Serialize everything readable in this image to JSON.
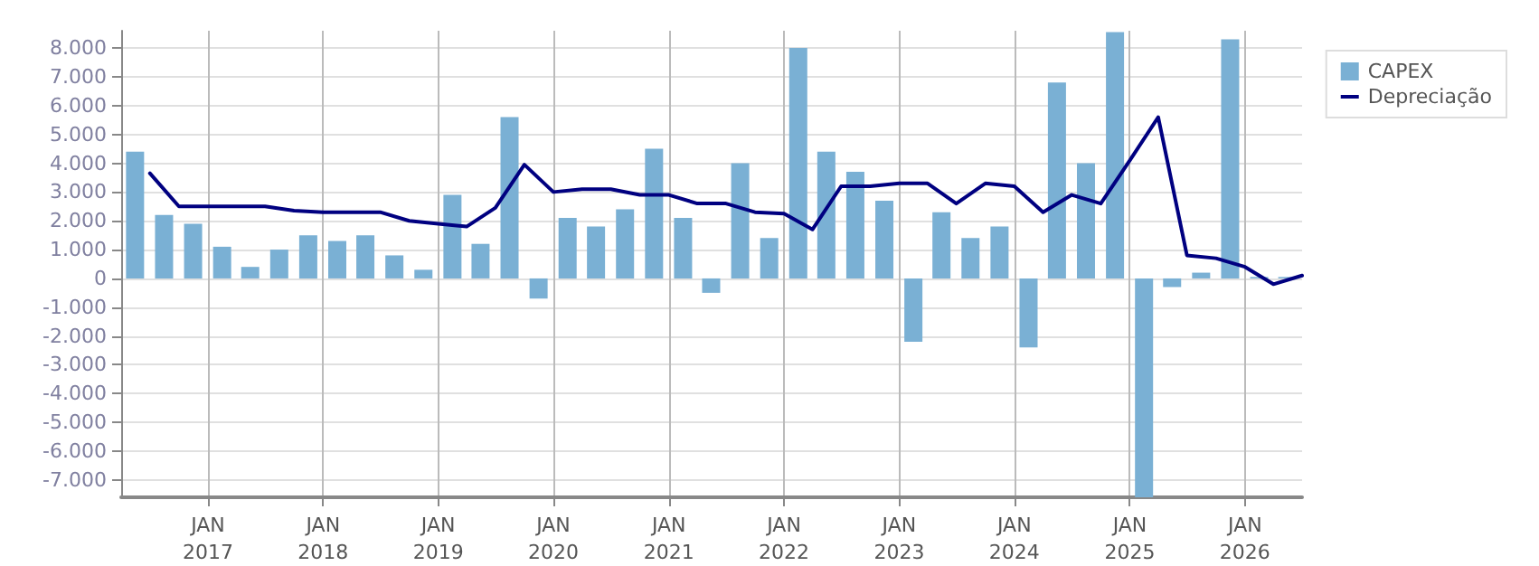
{
  "chart_data": {
    "type": "bar",
    "xlim": [
      "2016-04-01",
      "2026-07-01"
    ],
    "xticks": [
      {
        "value": "2017-01-01",
        "label": "JAN\n2017"
      },
      {
        "value": "2018-01-01",
        "label": "JAN\n2018"
      },
      {
        "value": "2019-01-01",
        "label": "JAN\n2019"
      },
      {
        "value": "2020-01-01",
        "label": "JAN\n2020"
      },
      {
        "value": "2021-01-01",
        "label": "JAN\n2021"
      },
      {
        "value": "2022-01-01",
        "label": "JAN\n2022"
      },
      {
        "value": "2023-01-01",
        "label": "JAN\n2023"
      },
      {
        "value": "2024-01-01",
        "label": "JAN\n2024"
      },
      {
        "value": "2025-01-01",
        "label": "JAN\n2025"
      },
      {
        "value": "2026-01-01",
        "label": "JAN\n2026"
      }
    ],
    "ylim": [
      -7600,
      8600
    ],
    "yticks": [
      {
        "value": -7000,
        "label": "-7.000"
      },
      {
        "value": -6000,
        "label": "-6.000"
      },
      {
        "value": -5000,
        "label": "-5.000"
      },
      {
        "value": -4000,
        "label": "-4.000"
      },
      {
        "value": -3000,
        "label": "-3.000"
      },
      {
        "value": -2000,
        "label": "-2.000"
      },
      {
        "value": -1000,
        "label": "-1.000"
      },
      {
        "value": 0,
        "label": "0"
      },
      {
        "value": 1000,
        "label": "1.000"
      },
      {
        "value": 2000,
        "label": "2.000"
      },
      {
        "value": 3000,
        "label": "3.000"
      },
      {
        "value": 4000,
        "label": "4.000"
      },
      {
        "value": 5000,
        "label": "5.000"
      },
      {
        "value": 6000,
        "label": "6.000"
      },
      {
        "value": 7000,
        "label": "7.000"
      },
      {
        "value": 8000,
        "label": "8.000"
      }
    ],
    "grid": true,
    "legend": "top right",
    "series": [
      {
        "name": "CAPEX",
        "color": "#7ab0d4",
        "x": [
          "2016-05-15",
          "2016-08-15",
          "2016-11-15",
          "2017-02-15",
          "2017-05-15",
          "2017-08-15",
          "2017-11-15",
          "2018-02-15",
          "2018-05-15",
          "2018-08-15",
          "2018-11-15",
          "2019-02-15",
          "2019-05-15",
          "2019-08-15",
          "2019-11-15",
          "2020-02-15",
          "2020-05-15",
          "2020-08-15",
          "2020-11-15",
          "2021-02-15",
          "2021-05-15",
          "2021-08-15",
          "2021-11-15",
          "2022-02-15",
          "2022-05-15",
          "2022-08-15",
          "2022-11-15",
          "2023-02-15",
          "2023-05-15",
          "2023-08-15",
          "2023-11-15",
          "2024-02-15",
          "2024-05-15",
          "2024-08-15",
          "2024-11-15",
          "2025-02-15",
          "2025-05-15",
          "2025-08-15",
          "2025-11-15",
          "2026-02-15",
          "2026-05-15"
        ],
        "values": [
          4400,
          2200,
          1900,
          1100,
          400,
          1000,
          1500,
          1300,
          1500,
          800,
          300,
          2900,
          1200,
          5600,
          -700,
          2100,
          1800,
          2400,
          4500,
          2100,
          -500,
          4000,
          1400,
          8000,
          4400,
          3700,
          2700,
          -2200,
          2300,
          1400,
          1800,
          -2400,
          6800,
          4000,
          8550,
          -7600,
          -300,
          200,
          8300,
          50,
          50
        ]
      },
      {
        "name": "Depreciação",
        "type": "line",
        "color": "#000080",
        "marker": "none",
        "x": [
          "2016-07-01",
          "2016-10-01",
          "2017-01-01",
          "2017-04-01",
          "2017-07-01",
          "2017-10-01",
          "2018-01-01",
          "2018-04-01",
          "2018-07-01",
          "2018-10-01",
          "2019-01-01",
          "2019-04-01",
          "2019-07-01",
          "2019-10-01",
          "2020-01-01",
          "2020-04-01",
          "2020-07-01",
          "2020-10-01",
          "2021-01-01",
          "2021-04-01",
          "2021-07-01",
          "2021-10-01",
          "2022-01-01",
          "2022-04-01",
          "2022-07-01",
          "2022-10-01",
          "2023-01-01",
          "2023-04-01",
          "2023-07-01",
          "2023-10-01",
          "2024-01-01",
          "2024-04-01",
          "2024-07-01",
          "2024-10-01",
          "2025-01-01",
          "2025-04-01",
          "2025-07-01",
          "2025-10-01",
          "2026-01-01",
          "2026-04-01",
          "2026-07-01"
        ],
        "values": [
          3650,
          2500,
          2500,
          2500,
          2500,
          2350,
          2300,
          2300,
          2300,
          2000,
          1900,
          1800,
          2450,
          3950,
          3000,
          3100,
          3100,
          2900,
          2900,
          2600,
          2600,
          2300,
          2250,
          1700,
          3200,
          3200,
          3300,
          3300,
          2600,
          3300,
          3200,
          2300,
          2900,
          2600,
          4100,
          5600,
          800,
          700,
          400,
          -200,
          100
        ]
      }
    ]
  }
}
